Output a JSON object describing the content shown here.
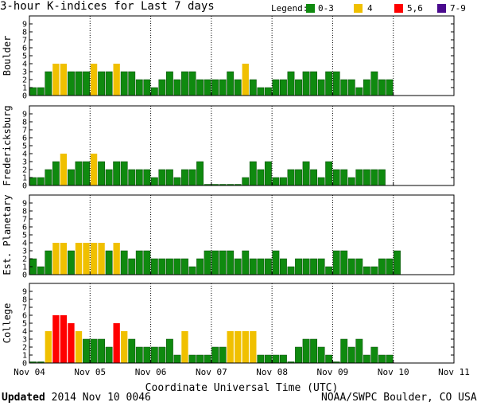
{
  "header": {
    "title": "3-hour K-indices for Last 7 days",
    "legend_label": "Legend:",
    "legend_items": [
      {
        "label": "0-3",
        "color": "#0f8a0f"
      },
      {
        "label": "4",
        "color": "#f0c000"
      },
      {
        "label": "5,6",
        "color": "#ff0000"
      },
      {
        "label": "7-9",
        "color": "#4a0a8e"
      }
    ]
  },
  "footer": {
    "updated_label": "Updated",
    "updated_value": "2014 Nov 10 0046",
    "credit": "NOAA/SWPC Boulder, CO USA"
  },
  "chart_data": {
    "type": "bar",
    "xlabel": "Coordinate Universal Time (UTC)",
    "x_ticks": [
      "Nov 04",
      "Nov 05",
      "Nov 06",
      "Nov 07",
      "Nov 08",
      "Nov 09",
      "Nov 10",
      "Nov 11"
    ],
    "y_ticks": [
      "0",
      "1",
      "2",
      "3",
      "4",
      "5",
      "6",
      "7",
      "8",
      "9"
    ],
    "ylim": [
      0,
      9
    ],
    "bins_per_day": 8,
    "color_scale": {
      "0-3": "#0f8a0f",
      "4": "#f0c000",
      "5-6": "#ff0000",
      "7-9": "#4a0a8e"
    },
    "panels": [
      {
        "ylabel": "Boulder",
        "values": [
          1,
          1,
          3,
          4,
          4,
          3,
          3,
          3,
          4,
          3,
          3,
          4,
          3,
          3,
          2,
          2,
          1,
          2,
          3,
          2,
          3,
          3,
          2,
          2,
          2,
          2,
          3,
          2,
          4,
          2,
          1,
          1,
          2,
          2,
          3,
          2,
          3,
          3,
          2,
          3,
          3,
          2,
          2,
          1,
          2,
          3,
          2,
          2
        ]
      },
      {
        "ylabel": "Fredericksburg",
        "values": [
          1,
          1,
          2,
          3,
          4,
          2,
          3,
          3,
          4,
          3,
          2,
          3,
          3,
          2,
          2,
          2,
          1,
          2,
          2,
          1,
          2,
          2,
          3,
          0,
          0,
          0,
          0,
          0,
          1,
          3,
          2,
          3,
          1,
          1,
          2,
          2,
          3,
          2,
          1,
          3,
          2,
          2,
          1,
          2,
          2,
          2,
          2
        ]
      },
      {
        "ylabel": "Est. Planetary",
        "values": [
          2,
          1,
          3,
          4,
          4,
          3,
          4,
          4,
          4,
          4,
          3,
          4,
          3,
          2,
          3,
          3,
          2,
          2,
          2,
          2,
          2,
          1,
          2,
          3,
          3,
          3,
          3,
          2,
          3,
          2,
          2,
          2,
          3,
          2,
          1,
          2,
          2,
          2,
          2,
          1,
          3,
          3,
          2,
          2,
          1,
          1,
          2,
          2,
          3
        ]
      },
      {
        "ylabel": "College",
        "values": [
          0,
          0,
          4,
          6,
          6,
          5,
          4,
          3,
          3,
          3,
          2,
          5,
          4,
          3,
          2,
          2,
          2,
          2,
          3,
          1,
          4,
          1,
          1,
          1,
          2,
          2,
          4,
          4,
          4,
          4,
          1,
          1,
          1,
          1,
          0,
          2,
          3,
          3,
          2,
          1,
          0,
          3,
          2,
          3,
          1,
          2,
          1,
          1
        ]
      }
    ]
  }
}
